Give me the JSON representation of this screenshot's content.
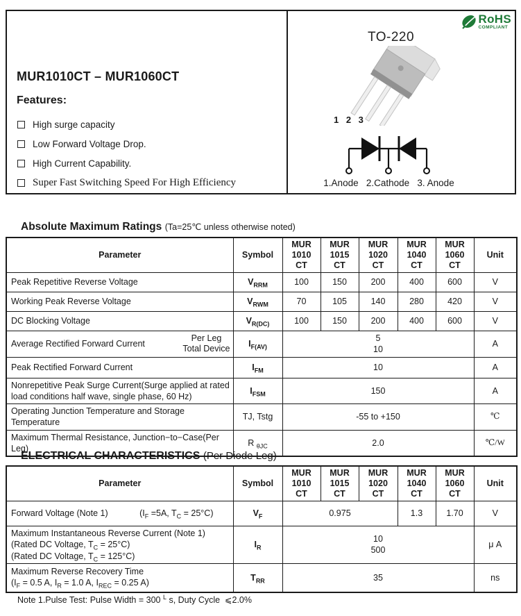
{
  "product": {
    "title": "MUR1010CT – MUR1060CT"
  },
  "features": {
    "title": "Features:",
    "items": [
      "High surge capacity",
      "Low Forward Voltage Drop.",
      "High Current Capability.",
      "Super Fast Switching Speed For High Efficiency"
    ]
  },
  "package": {
    "name": "TO-220",
    "rohs_line1": "RoHS",
    "rohs_line2": "COMPLIANT",
    "pins": "1 2 3",
    "pinout_caption": "1.Anode   2.Cathode   3. Anode"
  },
  "colors": {
    "rohs_green": "#1e7a37",
    "table_border": "#1a1a1a"
  },
  "abs_max": {
    "title": "Absolute Maximum Ratings",
    "subtitle": "(Ta=25℃ unless otherwise noted)",
    "head": [
      "Parameter",
      "Symbol",
      "MUR<br>1010<br>CT",
      "MUR<br>1015<br>CT",
      "MUR<br>1020<br>CT",
      "MUR<br>1040<br>CT",
      "MUR<br>1060<br>CT",
      "Unit"
    ],
    "rows": [
      {
        "cells": [
          {
            "h": "Peak Repetitive Reverse Voltage",
            "cls": "left"
          },
          {
            "h": "V<sub>RRM</sub>",
            "cls": "sym"
          },
          {
            "h": "100"
          },
          {
            "h": "150"
          },
          {
            "h": "200"
          },
          {
            "h": "400"
          },
          {
            "h": "600"
          },
          {
            "h": "V"
          }
        ]
      },
      {
        "cells": [
          {
            "h": "Working Peak Reverse Voltage",
            "cls": "left"
          },
          {
            "h": "V<sub>RWM</sub>",
            "cls": "sym"
          },
          {
            "h": "70"
          },
          {
            "h": "105"
          },
          {
            "h": "140"
          },
          {
            "h": "280"
          },
          {
            "h": "420"
          },
          {
            "h": "V"
          }
        ]
      },
      {
        "cells": [
          {
            "h": "DC Blocking Voltage",
            "cls": "left"
          },
          {
            "h": "V<sub>R(DC)</sub>",
            "cls": "sym"
          },
          {
            "h": "100"
          },
          {
            "h": "150"
          },
          {
            "h": "200"
          },
          {
            "h": "400"
          },
          {
            "h": "600"
          },
          {
            "h": "V"
          }
        ]
      },
      {
        "cls": "h29",
        "cells": [
          {
            "h": "<span class='split'><span>Average Rectified Forward Current</span><span class='stack'>Per Leg<br>Total Device</span></span>",
            "cls": "left"
          },
          {
            "h": "I<sub>F(AV)</sub>",
            "cls": "sym"
          },
          {
            "h": "5<br>10",
            "c": 5
          },
          {
            "h": "A"
          }
        ]
      },
      {
        "cls": "h30",
        "cells": [
          {
            "h": "Peak Rectified Forward Current",
            "cls": "left"
          },
          {
            "h": "I<sub>FM</sub>",
            "cls": "sym"
          },
          {
            "h": "10",
            "c": 5
          },
          {
            "h": "A"
          }
        ]
      },
      {
        "cls": "h35",
        "cells": [
          {
            "h": "Nonrepetitive Peak Surge Current(Surge applied at rated load conditions half wave, single phase, 60 Hz)",
            "cls": "left"
          },
          {
            "h": "I<sub>FSM</sub>",
            "cls": "sym"
          },
          {
            "h": "150",
            "c": 5
          },
          {
            "h": "A"
          }
        ]
      },
      {
        "cls": "h35",
        "cells": [
          {
            "h": "Operating Junction Temperature and Storage Temperature",
            "cls": "left"
          },
          {
            "h": "TJ, Tstg"
          },
          {
            "h": "-55 to +150",
            "c": 5
          },
          {
            "h": "℃",
            "cls": "unitc"
          }
        ]
      },
      {
        "cls": "h33",
        "cells": [
          {
            "h": "Maximum Thermal Resistance, Junction−to−Case(Per Leg)",
            "cls": "left"
          },
          {
            "h": "R <sub>θJC</sub>"
          },
          {
            "h": "2.0",
            "c": 5
          },
          {
            "h": "℃/W",
            "cls": "unitc"
          }
        ]
      }
    ]
  },
  "elec": {
    "title": "ELECTRICAL CHARACTERISTICS",
    "subtitle": "(Per Diode Leg)",
    "head": [
      "Parameter",
      "Symbol",
      "MUR<br>1010<br>CT",
      "MUR<br>1015<br>CT",
      "MUR<br>1020<br>CT",
      "MUR<br>1040<br>CT",
      "MUR<br>1060<br>CT",
      "Unit"
    ],
    "rows": [
      {
        "cls": "h36",
        "cells": [
          {
            "h": "<span class='split'><span>Forward Voltage (Note 1)</span><span class='cond'>(I<sub>F</sub> =5A, T<sub>C</sub> = 25°C)</span></span>",
            "cls": "left"
          },
          {
            "h": "V<sub>F</sub>",
            "cls": "sym"
          },
          {
            "h": "0.975",
            "c": 3
          },
          {
            "h": "1.3"
          },
          {
            "h": "1.70"
          },
          {
            "h": "V"
          }
        ]
      },
      {
        "cls": "h43",
        "cells": [
          {
            "h": "Maximum Instantaneous Reverse Current (Note 1)<br>(Rated DC Voltage, T<sub>C</sub> = 25°C)<br>(Rated DC Voltage, T<sub>C</sub> = 125°C)",
            "cls": "left"
          },
          {
            "h": "I<sub>R</sub>",
            "cls": "sym"
          },
          {
            "h": "10<br>500",
            "c": 5
          },
          {
            "h": "μ A"
          }
        ]
      },
      {
        "cls": "h42",
        "cells": [
          {
            "h": "Maximum Reverse Recovery Time<br>(I<sub>F</sub> = 0.5 A, I<sub>R</sub> = 1.0 A, I<sub>REC</sub> = 0.25 A)",
            "cls": "left vtop"
          },
          {
            "h": "T<sub>RR</sub>",
            "cls": "sym"
          },
          {
            "h": "35",
            "c": 5
          },
          {
            "h": "ns"
          }
        ]
      }
    ]
  },
  "note_html": "Note 1.Pulse Test: Pulse Width = 300 <sup>L</sup> s, Duty Cycle  ⩽2.0%"
}
